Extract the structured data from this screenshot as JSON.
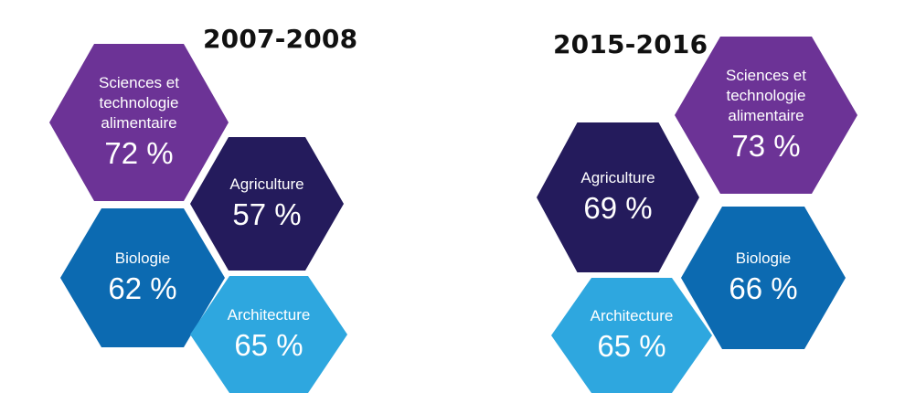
{
  "panels": [
    {
      "period": "2007-2008",
      "items": [
        {
          "label": "Sciences et\ntechnologie\nalimentaire",
          "value": "72 %",
          "color": "#6c3396"
        },
        {
          "label": "Agriculture",
          "value": "57 %",
          "color": "#241b5c"
        },
        {
          "label": "Biologie",
          "value": "62 %",
          "color": "#0c6ab1"
        },
        {
          "label": "Architecture",
          "value": "65 %",
          "color": "#2ea7df"
        }
      ]
    },
    {
      "period": "2015-2016",
      "items": [
        {
          "label": "Sciences et\ntechnologie\nalimentaire",
          "value": "73 %",
          "color": "#6c3396"
        },
        {
          "label": "Agriculture",
          "value": "69 %",
          "color": "#241b5c"
        },
        {
          "label": "Biologie",
          "value": "66 %",
          "color": "#0c6ab1"
        },
        {
          "label": "Architecture",
          "value": "65 %",
          "color": "#2ea7df"
        }
      ]
    }
  ]
}
